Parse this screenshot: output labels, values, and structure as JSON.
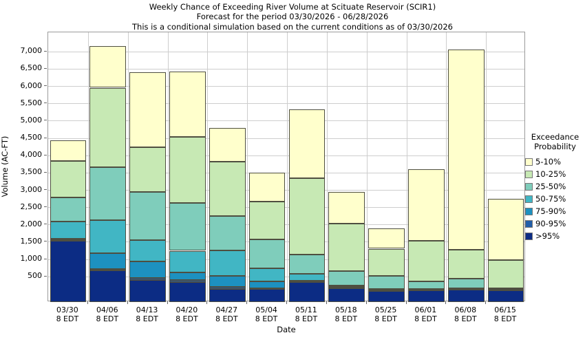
{
  "title": {
    "line1": "Weekly Chance of Exceeding River Volume at Scituate Reservoir (SCIR1)",
    "line2": "Forecast for the period 03/30/2026 - 06/28/2026",
    "line3": "This is a conditional simulation based on the current conditions as of 03/30/2026"
  },
  "axes": {
    "y_label": "Volume (AC-FT)",
    "x_label": "Date",
    "y_ticks": [
      500,
      1000,
      1500,
      2000,
      2500,
      3000,
      3500,
      4000,
      4500,
      5000,
      5500,
      6000,
      6500,
      7000
    ],
    "x_tick_sublabel": "8 EDT"
  },
  "legend": {
    "title_line1": "Exceedance",
    "title_line2": "Probability",
    "entries": [
      {
        "label": "5-10%",
        "color": "#ffffcc"
      },
      {
        "label": "10-25%",
        "color": "#c7e9b4"
      },
      {
        "label": "25-50%",
        "color": "#7fcdbb"
      },
      {
        "label": "50-75%",
        "color": "#41b6c4"
      },
      {
        "label": "75-90%",
        "color": "#1d91c0"
      },
      {
        "label": "90-95%",
        "color": "#225ea8"
      },
      {
        "label": ">95%",
        "color": "#0c2c84"
      }
    ]
  },
  "chart_data": {
    "type": "bar",
    "stacked": true,
    "title": "Weekly Chance of Exceeding River Volume at Scituate Reservoir (SCIR1)",
    "xlabel": "Date",
    "ylabel": "Volume (AC-FT)",
    "units": "AC-FT",
    "ylim": [
      0,
      7520
    ],
    "grid": true,
    "legend_position": "right",
    "categories": [
      "03/30",
      "04/06",
      "04/13",
      "04/20",
      "04/27",
      "05/04",
      "05/11",
      "05/18",
      "05/25",
      "06/01",
      "06/08",
      "06/15"
    ],
    "category_sublabel": "8 EDT",
    "bands_note": "cumulative_top = stacked upper boundary (AC-FT) of each exceedance-probability band, bottom band starts at 0",
    "bands": [
      {
        "name": ">95%",
        "color": "#0c2c84",
        "cumulative_top": [
          1520,
          680,
          390,
          330,
          145,
          130,
          340,
          170,
          95,
          110,
          130,
          118
        ]
      },
      {
        "name": "90-95%",
        "color": "#225ea8",
        "cumulative_top": [
          1550,
          720,
          460,
          390,
          200,
          160,
          355,
          185,
          105,
          120,
          140,
          124
        ]
      },
      {
        "name": "75-90%",
        "color": "#1d91c0",
        "cumulative_top": [
          1580,
          1170,
          930,
          610,
          510,
          355,
          375,
          210,
          115,
          130,
          150,
          130
        ]
      },
      {
        "name": "50-75%",
        "color": "#41b6c4",
        "cumulative_top": [
          2090,
          2130,
          1540,
          1240,
          1250,
          740,
          575,
          245,
          130,
          145,
          165,
          136
        ]
      },
      {
        "name": "25-50%",
        "color": "#7fcdbb",
        "cumulative_top": [
          2780,
          3650,
          2940,
          2630,
          2240,
          1570,
          1140,
          655,
          520,
          360,
          440,
          150
        ]
      },
      {
        "name": "10-25%",
        "color": "#c7e9b4",
        "cumulative_top": [
          3830,
          5950,
          4240,
          4530,
          3820,
          2660,
          3340,
          2030,
          1300,
          1520,
          1280,
          980
        ]
      },
      {
        "name": "5-10%",
        "color": "#ffffcc",
        "cumulative_top": [
          4430,
          7150,
          6400,
          6420,
          4780,
          3490,
          5320,
          2950,
          1890,
          3590,
          7050,
          2750
        ]
      }
    ]
  }
}
